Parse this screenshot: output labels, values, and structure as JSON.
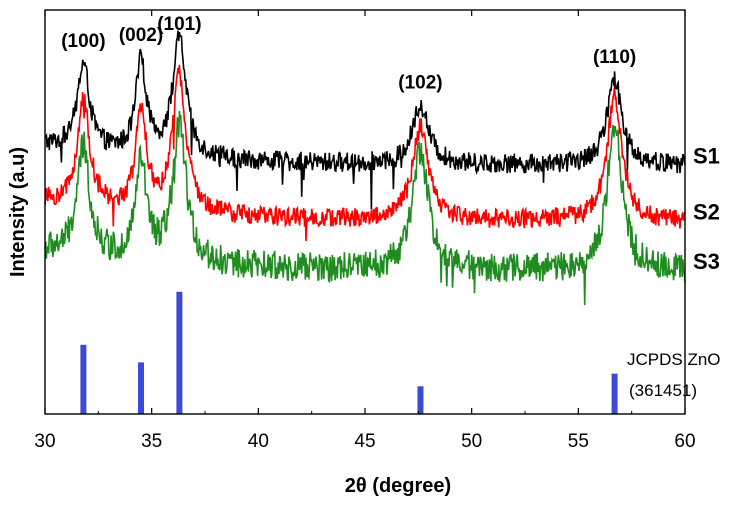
{
  "chart_data": {
    "type": "line",
    "title": "",
    "xlabel": "2θ (degree)",
    "ylabel": "Intensity  (a.u)",
    "xlim": [
      30,
      60
    ],
    "x_ticks": [
      30,
      35,
      40,
      45,
      50,
      55,
      60
    ],
    "y_ticks_shown": false,
    "grid": false,
    "series": [
      {
        "name": "S1",
        "color": "#000000",
        "baseline_level": 0.62,
        "peaks": [
          {
            "x": 31.8,
            "height": 0.26,
            "width": 0.35
          },
          {
            "x": 34.5,
            "height": 0.28,
            "width": 0.3
          },
          {
            "x": 36.3,
            "height": 0.36,
            "width": 0.38
          },
          {
            "x": 47.6,
            "height": 0.18,
            "width": 0.45
          },
          {
            "x": 56.7,
            "height": 0.26,
            "width": 0.42
          }
        ]
      },
      {
        "name": "S2",
        "color": "#ff0000",
        "baseline_level": 0.45,
        "peaks": [
          {
            "x": 31.8,
            "height": 0.32,
            "width": 0.35
          },
          {
            "x": 34.5,
            "height": 0.3,
            "width": 0.3
          },
          {
            "x": 36.3,
            "height": 0.42,
            "width": 0.38
          },
          {
            "x": 47.6,
            "height": 0.28,
            "width": 0.45
          },
          {
            "x": 56.7,
            "height": 0.38,
            "width": 0.42
          }
        ]
      },
      {
        "name": "S3",
        "color": "#1e8c1e",
        "baseline_level": 0.3,
        "peaks": [
          {
            "x": 31.8,
            "height": 0.33,
            "width": 0.35
          },
          {
            "x": 34.5,
            "height": 0.3,
            "width": 0.3
          },
          {
            "x": 36.3,
            "height": 0.42,
            "width": 0.38
          },
          {
            "x": 47.6,
            "height": 0.36,
            "width": 0.45
          },
          {
            "x": 56.7,
            "height": 0.45,
            "width": 0.42
          }
        ]
      }
    ],
    "reference": {
      "label_line1": "JCPDS ZnO",
      "label_line2": "(361451)",
      "color": "#3b4bd8",
      "lines": [
        {
          "x": 31.8,
          "intensity": 0.55
        },
        {
          "x": 34.5,
          "intensity": 0.41
        },
        {
          "x": 36.3,
          "intensity": 0.97
        },
        {
          "x": 47.6,
          "intensity": 0.22
        },
        {
          "x": 56.7,
          "intensity": 0.32
        }
      ]
    },
    "peak_labels": [
      {
        "text": "(100)",
        "x": 31.8
      },
      {
        "text": "(002)",
        "x": 34.5
      },
      {
        "text": "(101)",
        "x": 36.3
      },
      {
        "text": "(102)",
        "x": 47.6
      },
      {
        "text": "(110)",
        "x": 56.7
      }
    ]
  }
}
